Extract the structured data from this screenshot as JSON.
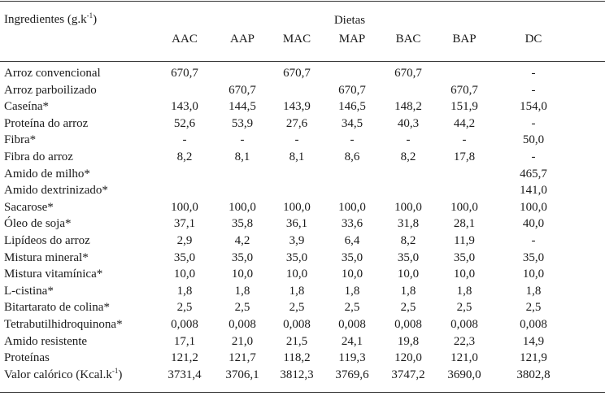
{
  "header": {
    "ingredients_label": "Ingredientes (g.k",
    "ingredients_sup": "-1",
    "ingredients_close": ")",
    "group_label": "Dietas",
    "columns": [
      "AAC",
      "AAP",
      "MAC",
      "MAP",
      "BAC",
      "BAP",
      "DC"
    ]
  },
  "rows": [
    {
      "label": "Arroz convencional",
      "values": [
        "670,7",
        "",
        "670,7",
        "",
        "670,7",
        "",
        "-"
      ]
    },
    {
      "label": "Arroz parboilizado",
      "values": [
        "",
        "670,7",
        "",
        "670,7",
        "",
        "670,7",
        "-"
      ]
    },
    {
      "label": "Caseína*",
      "values": [
        "143,0",
        "144,5",
        "143,9",
        "146,5",
        "148,2",
        "151,9",
        "154,0"
      ]
    },
    {
      "label": "Proteína do arroz",
      "values": [
        "52,6",
        "53,9",
        "27,6",
        "34,5",
        "40,3",
        "44,2",
        "-"
      ]
    },
    {
      "label": "Fibra*",
      "values": [
        "-",
        "-",
        "-",
        "-",
        "-",
        "-",
        "50,0"
      ]
    },
    {
      "label": "Fibra do arroz",
      "values": [
        "8,2",
        "8,1",
        "8,1",
        "8,6",
        "8,2",
        "17,8",
        "-"
      ]
    },
    {
      "label": "Amido de milho*",
      "values": [
        "",
        "",
        "",
        "",
        "",
        "",
        "465,7"
      ]
    },
    {
      "label": "Amido dextrinizado*",
      "values": [
        "",
        "",
        "",
        "",
        "",
        "",
        "141,0"
      ]
    },
    {
      "label": "Sacarose*",
      "values": [
        "100,0",
        "100,0",
        "100,0",
        "100,0",
        "100,0",
        "100,0",
        "100,0"
      ]
    },
    {
      "label": "Óleo de soja*",
      "values": [
        "37,1",
        "35,8",
        "36,1",
        "33,6",
        "31,8",
        "28,1",
        "40,0"
      ]
    },
    {
      "label": "Lipídeos do arroz",
      "values": [
        "2,9",
        "4,2",
        "3,9",
        "6,4",
        "8,2",
        "11,9",
        "-"
      ]
    },
    {
      "label": "Mistura mineral*",
      "values": [
        "35,0",
        "35,0",
        "35,0",
        "35,0",
        "35,0",
        "35,0",
        "35,0"
      ]
    },
    {
      "label": "Mistura vitamínica*",
      "values": [
        "10,0",
        "10,0",
        "10,0",
        "10,0",
        "10,0",
        "10,0",
        "10,0"
      ]
    },
    {
      "label": "L-cistina*",
      "values": [
        "1,8",
        "1,8",
        "1,8",
        "1,8",
        "1,8",
        "1,8",
        "1,8"
      ]
    },
    {
      "label": "Bitartarato de colina*",
      "values": [
        "2,5",
        "2,5",
        "2,5",
        "2,5",
        "2,5",
        "2,5",
        "2,5"
      ]
    },
    {
      "label": "Tetrabutilhidroquinona*",
      "values": [
        "0,008",
        "0,008",
        "0,008",
        "0,008",
        "0,008",
        "0,008",
        "0,008"
      ]
    },
    {
      "label": "Amido resistente",
      "values": [
        "17,1",
        "21,0",
        "21,5",
        "24,1",
        "19,8",
        "22,3",
        "14,9"
      ]
    },
    {
      "label": "Proteínas",
      "values": [
        "121,2",
        "121,7",
        "118,2",
        "119,3",
        "120,0",
        "121,0",
        "121,9"
      ]
    },
    {
      "label": "Valor calórico (Kcal.k",
      "label_sup": "-1",
      "label_close": ")",
      "values": [
        "3731,4",
        "3706,1",
        "3812,3",
        "3769,6",
        "3747,2",
        "3690,0",
        "3802,8"
      ]
    }
  ]
}
